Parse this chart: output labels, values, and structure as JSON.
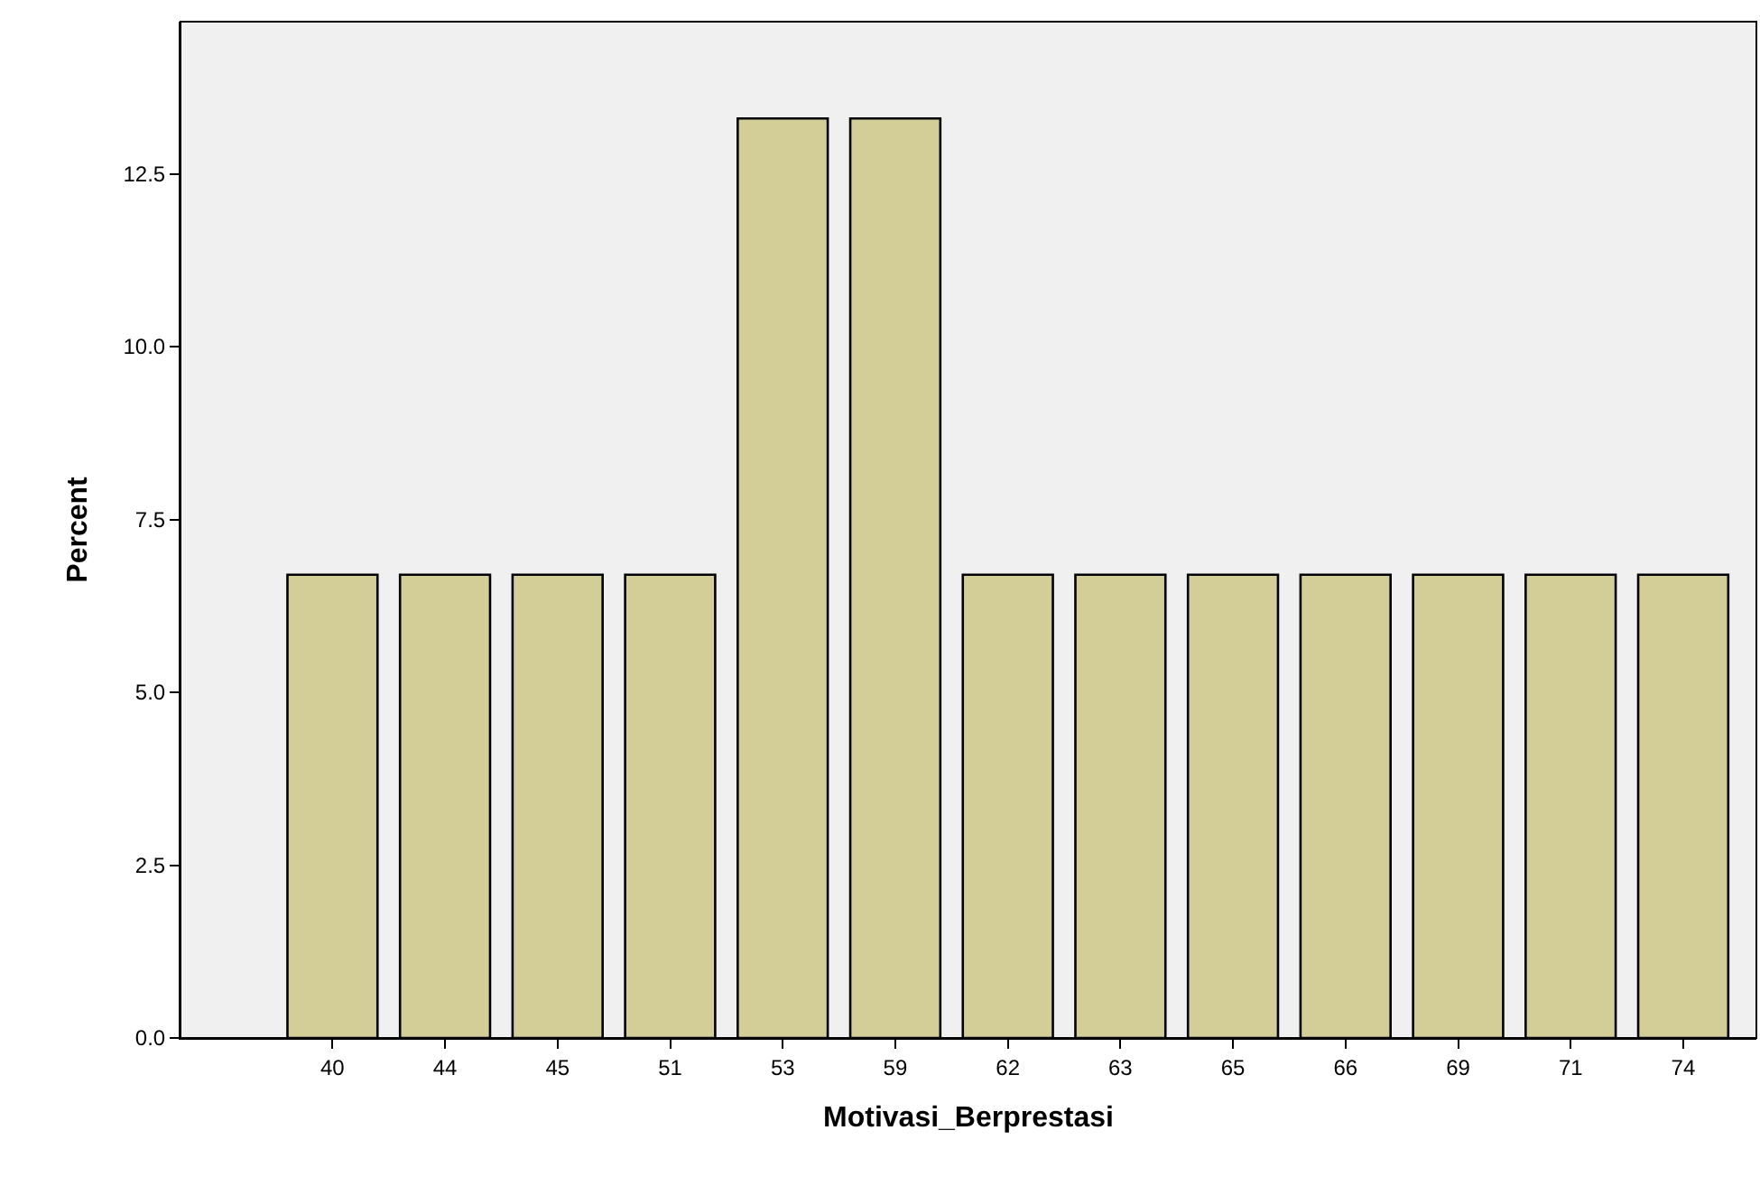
{
  "chart_data": {
    "type": "bar",
    "xlabel": "Motivasi_Berprestasi",
    "ylabel": "Percent",
    "categories": [
      "40",
      "44",
      "45",
      "51",
      "53",
      "59",
      "62",
      "63",
      "65",
      "66",
      "69",
      "71",
      "74"
    ],
    "values": [
      6.7,
      6.7,
      6.7,
      6.7,
      13.3,
      13.3,
      6.7,
      6.7,
      6.7,
      6.7,
      6.7,
      6.7,
      6.7
    ],
    "color": "#d3ce98",
    "grid": false,
    "ylim": [
      0,
      14.7
    ],
    "yticks": [
      {
        "value": 0,
        "label": "0.0"
      },
      {
        "value": 2.5,
        "label": "2.5"
      },
      {
        "value": 5,
        "label": "5.0"
      },
      {
        "value": 7.5,
        "label": "7.5"
      },
      {
        "value": 10,
        "label": "10.0"
      },
      {
        "value": 12.5,
        "label": "12.5"
      }
    ],
    "legend": false
  }
}
